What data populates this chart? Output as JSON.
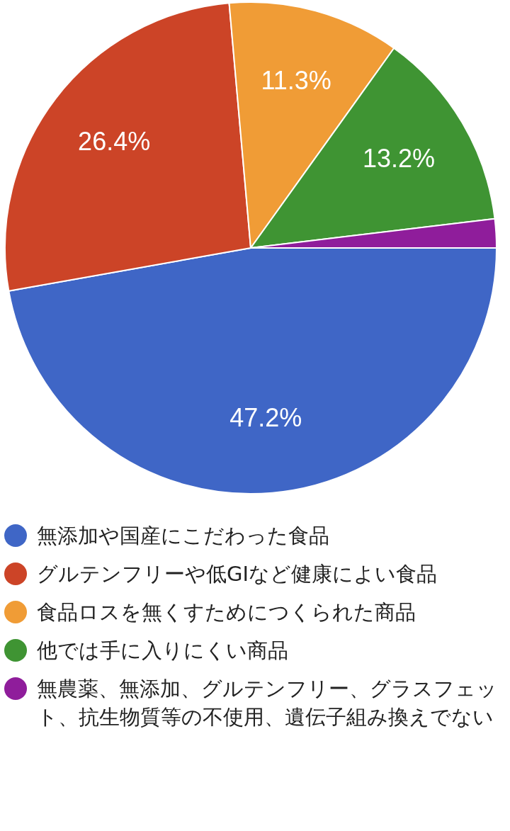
{
  "chart_data": {
    "type": "pie",
    "categories": [
      "無添加や国産にこだわった食品",
      "グルテンフリーや低GIなど健康によい食品",
      "食品ロスを無くすためにつくられた商品",
      "他では手に入りにくい商品",
      "無農薬、無添加、グルテンフリー、グラスフェット、抗生物質等の不使用、遺伝子組み換えでない"
    ],
    "values": [
      47.2,
      26.4,
      11.3,
      13.2,
      1.9
    ],
    "colors": [
      "#3f66c6",
      "#cc4427",
      "#f09c36",
      "#3f9433",
      "#8f1d9b"
    ],
    "value_labels": [
      "47.2%",
      "26.4%",
      "11.3%",
      "13.2%",
      null
    ],
    "legend": "bottom"
  }
}
